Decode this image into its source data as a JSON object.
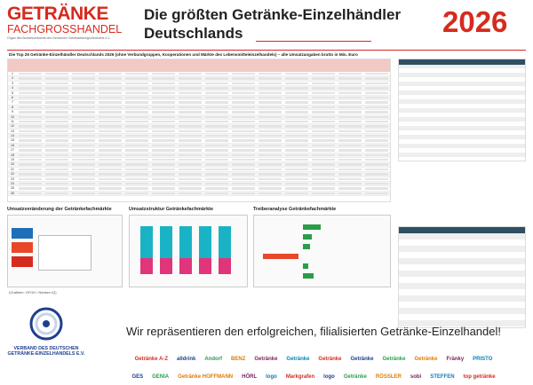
{
  "header": {
    "brand_top": "GETRÄNKE",
    "brand_bottom": "FACHGROSSHANDEL",
    "brand_tagline": "Organ des Bundesverbands des Deutschen Getränkefachgroßhandels e.V.",
    "title_line1": "Die größten Getränke-Einzelhändler",
    "title_line2": "Deutschlands",
    "year": "2026"
  },
  "main_table": {
    "caption": "Die Top 26 Getränke-Einzelhändler Deutschlands 2026 (ohne Verbundgruppen, Kooperationen und Märkte des Lebensmitteleinzelhandels) – alle Umsatzangaben brutto in Mio. Euro",
    "ranks": [
      "1",
      "2",
      "3",
      "4",
      "5",
      "6",
      "7",
      "8",
      "9",
      "10",
      "11",
      "12",
      "13",
      "14",
      "15",
      "16",
      "17",
      "18",
      "19",
      "20",
      "21",
      "22",
      "23",
      "24",
      "25",
      "26"
    ]
  },
  "charts": {
    "titles": [
      "Umsatzveränderung der Getränkefachmärkte",
      "Umsatzstruktur Getränkefachmärkte",
      "Treiberanalyse Getränkefachmärkte"
    ],
    "source": "(Grafiken: GFGH / Nielsen IQ)"
  },
  "footer": {
    "slogan": "Wir repräsentieren den erfolgreichen, filialisierten Getränke-Einzelhandel!",
    "association_line1": "VERBAND DES DEUTSCHEN",
    "association_line2": "GETRÄNKE-EINZELHANDELS E.V.",
    "logos_row1": [
      "Getränke A-Z",
      "alldrink",
      "Andorf",
      "BENZ",
      "Getränke",
      "Getränke",
      "Getränke",
      "Getränke",
      "Getränke",
      "Getränke",
      "Fränky",
      "PRISTO"
    ],
    "logos_row2": [
      "GES",
      "GENIA",
      "Getränke HOFFMANN",
      "HÖRL",
      "logo",
      "Markgrafen",
      "logo",
      "Getränke",
      "RÖSSLER",
      "sobi",
      "STEFFEN",
      "top getränke"
    ]
  }
}
